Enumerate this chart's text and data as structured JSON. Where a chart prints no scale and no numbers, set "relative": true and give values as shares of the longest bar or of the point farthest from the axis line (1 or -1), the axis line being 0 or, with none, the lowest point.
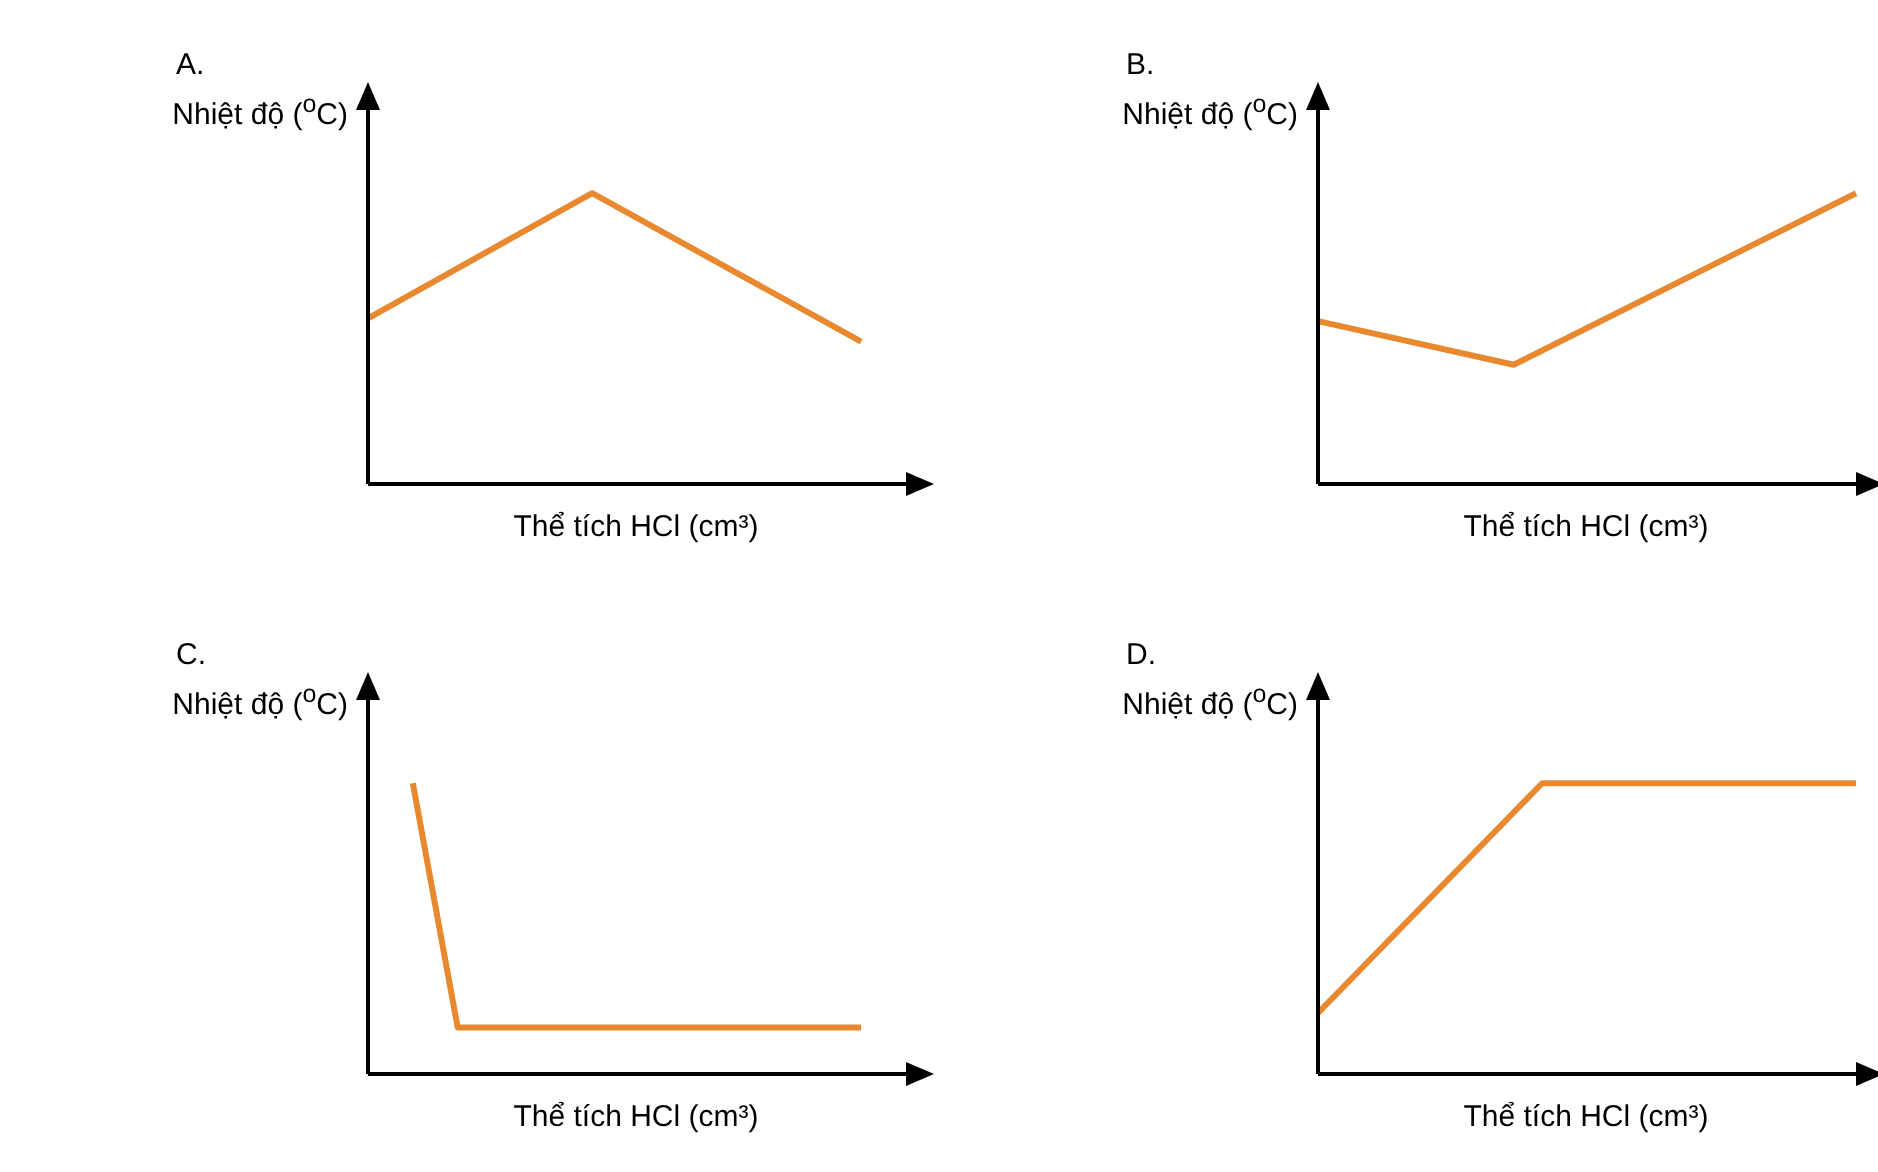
{
  "chart_data": [
    {
      "type": "line",
      "title": "A.",
      "xlabel": "Thể tích HCl (cm³)",
      "ylabel": "Nhiệt độ ($^{o}$C)",
      "relative": true,
      "categories": [
        null,
        null,
        null,
        null,
        null,
        null,
        null,
        null,
        null,
        null,
        null,
        null,
        null
      ],
      "grid": false,
      "legend": false,
      "marker": "none",
      "line_style": "solid",
      "series": [
        {
          "color": "#e8892f",
          "values": [
            0.57,
            null,
            null,
            null,
            null,
            1,
            null,
            null,
            null,
            null,
            null,
            0.49,
            null
          ]
        }
      ]
    },
    {
      "type": "line",
      "title": "B.",
      "xlabel": "Thể tích HCl (cm³)",
      "ylabel": "Nhiệt độ ($^{o}$C)",
      "relative": true,
      "categories": [
        null,
        null,
        null,
        null,
        null,
        null,
        null,
        null,
        null,
        null,
        null,
        null
      ],
      "grid": false,
      "legend": false,
      "marker": "none",
      "line_style": "solid",
      "series": [
        {
          "color": "#e8892f",
          "values": [
            0.56,
            null,
            null,
            null,
            0.41,
            null,
            null,
            null,
            null,
            null,
            null,
            1
          ]
        }
      ]
    },
    {
      "type": "line",
      "title": "C.",
      "xlabel": "Thể tích HCl (cm³)",
      "ylabel": "Nhiệt độ ($^{o}$C)",
      "relative": true,
      "categories": [
        null,
        null,
        null,
        null,
        null,
        null,
        null,
        null,
        null,
        null,
        null,
        null,
        null
      ],
      "grid": false,
      "legend": false,
      "marker": "none",
      "line_style": "solid",
      "series": [
        {
          "color": "#e8892f",
          "values": [
            null,
            1,
            0.16,
            null,
            null,
            null,
            null,
            null,
            null,
            null,
            null,
            0.16,
            null
          ]
        }
      ]
    },
    {
      "type": "line",
      "title": "D.",
      "xlabel": "Thể tích HCl (cm³)",
      "ylabel": "Nhiệt độ ($^{o}$C)",
      "relative": true,
      "categories": [
        null,
        null,
        null,
        null,
        null,
        null,
        null,
        null,
        null,
        null,
        null,
        null,
        null
      ],
      "grid": false,
      "legend": false,
      "marker": "none",
      "line_style": "solid",
      "series": [
        {
          "color": "#e8892f",
          "values": [
            0.21,
            null,
            null,
            null,
            null,
            1,
            null,
            null,
            null,
            null,
            null,
            null,
            1
          ]
        }
      ]
    }
  ]
}
